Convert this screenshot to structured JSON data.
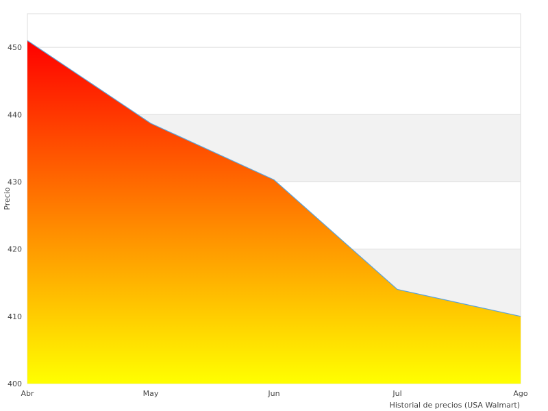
{
  "chart_data": {
    "type": "area",
    "categories": [
      "Abr",
      "May",
      "Jun",
      "Jul",
      "Ago"
    ],
    "values": [
      451,
      438.7,
      430.3,
      414,
      410
    ],
    "ylabel": "Precio",
    "xlabel": "Historial de precios (USA Walmart)",
    "ylim": [
      400,
      455
    ],
    "yticks": [
      400,
      410,
      420,
      430,
      440,
      450
    ],
    "grid": true,
    "colors": {
      "fill_top": "#ff0000",
      "fill_bottom": "#ffff00",
      "line": "#5ba3d9",
      "band": "#f2f2f2",
      "gridline": "#dddddd",
      "border": "#dddddd"
    }
  }
}
